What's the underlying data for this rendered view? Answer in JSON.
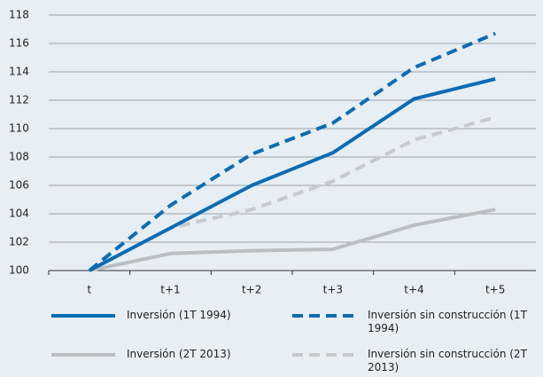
{
  "chart_data": {
    "type": "line",
    "categories": [
      "t",
      "t+1",
      "t+2",
      "t+3",
      "t+4",
      "t+5"
    ],
    "series": [
      {
        "name": "Inversión (1T 1994)",
        "color": "#0b6cb4",
        "dashed": false,
        "values": [
          100,
          103.0,
          106.0,
          108.3,
          112.1,
          113.5
        ]
      },
      {
        "name": "Inversión sin construcción (1T 1994)",
        "color": "#0b6cb4",
        "dashed": true,
        "values": [
          100,
          104.6,
          108.2,
          110.4,
          114.3,
          116.7
        ]
      },
      {
        "name": "Inversión (2T 2013)",
        "color": "#b9bfc3",
        "dashed": false,
        "values": [
          100,
          101.2,
          101.4,
          101.5,
          103.2,
          104.3
        ]
      },
      {
        "name": "Inversión sin construcción (2T 2013)",
        "color": "#c6cacd",
        "dashed": true,
        "values": [
          100,
          103.0,
          104.3,
          106.3,
          109.2,
          110.8
        ]
      }
    ],
    "ylim": [
      100,
      118
    ],
    "yticks": [
      100,
      102,
      104,
      106,
      108,
      110,
      112,
      114,
      116,
      118
    ],
    "grid": true
  }
}
